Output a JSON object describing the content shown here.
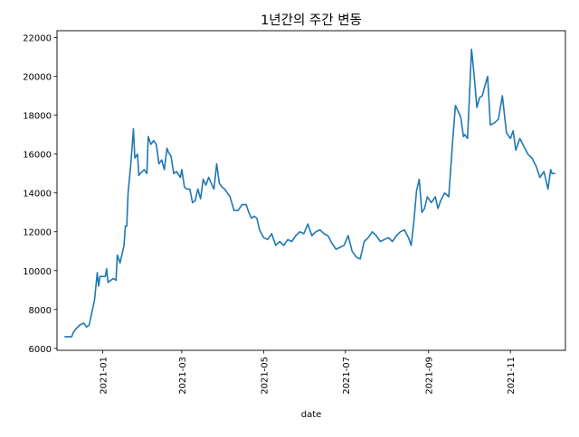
{
  "chart_data": {
    "type": "line",
    "title": "1년간의 주간 변동",
    "xlabel": "date",
    "ylabel": "",
    "xlim": [
      "2020-11-28",
      "2021-12-12"
    ],
    "ylim": [
      5900,
      22350
    ],
    "grid": false,
    "legend": "none",
    "x_ticks": [
      "2021-01",
      "2021-03",
      "2021-05",
      "2021-07",
      "2021-09",
      "2021-11"
    ],
    "y_ticks": [
      6000,
      8000,
      10000,
      12000,
      14000,
      16000,
      18000,
      20000,
      22000
    ],
    "series": [
      {
        "color": "#1f77b4",
        "x": [
          "2020-12-04",
          "2020-12-09",
          "2020-12-10",
          "2020-12-12",
          "2020-12-15",
          "2020-12-18",
          "2020-12-20",
          "2020-12-22",
          "2020-12-26",
          "2020-12-28",
          "2020-12-29",
          "2020-12-30",
          "2021-01-01",
          "2021-01-03",
          "2021-01-04",
          "2021-01-05",
          "2021-01-09",
          "2021-01-11",
          "2021-01-12",
          "2021-01-14",
          "2021-01-17",
          "2021-01-18",
          "2021-01-19",
          "2021-01-20",
          "2021-01-22",
          "2021-01-24",
          "2021-01-25",
          "2021-01-27",
          "2021-01-28",
          "2021-01-29",
          "2021-02-01",
          "2021-02-03",
          "2021-02-04",
          "2021-02-06",
          "2021-02-08",
          "2021-02-10",
          "2021-02-12",
          "2021-02-14",
          "2021-02-16",
          "2021-02-18",
          "2021-02-19",
          "2021-02-21",
          "2021-02-23",
          "2021-02-25",
          "2021-02-28",
          "2021-03-01",
          "2021-03-03",
          "2021-03-05",
          "2021-03-07",
          "2021-03-09",
          "2021-03-11",
          "2021-03-13",
          "2021-03-15",
          "2021-03-17",
          "2021-03-19",
          "2021-03-21",
          "2021-03-23",
          "2021-03-25",
          "2021-03-27",
          "2021-03-29",
          "2021-03-31",
          "2021-04-02",
          "2021-04-04",
          "2021-04-06",
          "2021-04-09",
          "2021-04-12",
          "2021-04-15",
          "2021-04-18",
          "2021-04-20",
          "2021-04-22",
          "2021-04-24",
          "2021-04-26",
          "2021-04-28",
          "2021-05-01",
          "2021-05-04",
          "2021-05-07",
          "2021-05-10",
          "2021-05-13",
          "2021-05-16",
          "2021-05-19",
          "2021-05-22",
          "2021-05-25",
          "2021-05-28",
          "2021-05-31",
          "2021-06-03",
          "2021-06-06",
          "2021-06-09",
          "2021-06-12",
          "2021-06-15",
          "2021-06-18",
          "2021-06-21",
          "2021-06-24",
          "2021-06-27",
          "2021-06-30",
          "2021-07-03",
          "2021-07-06",
          "2021-07-09",
          "2021-07-12",
          "2021-07-15",
          "2021-07-18",
          "2021-07-21",
          "2021-07-24",
          "2021-07-27",
          "2021-07-30",
          "2021-08-02",
          "2021-08-05",
          "2021-08-08",
          "2021-08-11",
          "2021-08-14",
          "2021-08-17",
          "2021-08-19",
          "2021-08-21",
          "2021-08-23",
          "2021-08-25",
          "2021-08-27",
          "2021-08-29",
          "2021-08-31",
          "2021-09-03",
          "2021-09-06",
          "2021-09-08",
          "2021-09-10",
          "2021-09-13",
          "2021-09-16",
          "2021-09-19",
          "2021-09-21",
          "2021-09-23",
          "2021-09-25",
          "2021-09-27",
          "2021-09-28",
          "2021-09-30",
          "2021-10-03",
          "2021-10-05",
          "2021-10-07",
          "2021-10-09",
          "2021-10-11",
          "2021-10-13",
          "2021-10-15",
          "2021-10-17",
          "2021-10-20",
          "2021-10-23",
          "2021-10-26",
          "2021-10-29",
          "2021-11-01",
          "2021-11-03",
          "2021-11-05",
          "2021-11-08",
          "2021-11-11",
          "2021-11-14",
          "2021-11-17",
          "2021-11-20",
          "2021-11-23",
          "2021-11-26",
          "2021-11-29",
          "2021-12-01",
          "2021-12-02",
          "2021-12-04"
        ],
        "y": [
          6600,
          6600,
          6800,
          7000,
          7200,
          7300,
          7100,
          7200,
          8500,
          9900,
          9200,
          9700,
          9700,
          9700,
          10100,
          9400,
          9600,
          9500,
          10800,
          10400,
          11300,
          12300,
          12300,
          14000,
          15500,
          17300,
          15800,
          16000,
          14900,
          15000,
          15200,
          15000,
          16900,
          16500,
          16700,
          16500,
          15500,
          15700,
          15200,
          16300,
          16100,
          15900,
          15000,
          15100,
          14800,
          15200,
          14300,
          14200,
          14200,
          13500,
          13600,
          14200,
          13700,
          14700,
          14400,
          14800,
          14500,
          14200,
          15500,
          14500,
          14300,
          14200,
          14000,
          13800,
          13100,
          13100,
          13400,
          13400,
          13000,
          12700,
          12800,
          12700,
          12100,
          11700,
          11600,
          11900,
          11300,
          11500,
          11300,
          11600,
          11500,
          11800,
          12000,
          11900,
          12400,
          11800,
          12000,
          12100,
          11900,
          11800,
          11400,
          11100,
          11200,
          11300,
          11800,
          11000,
          10700,
          10600,
          11500,
          11700,
          12000,
          11800,
          11500,
          11600,
          11700,
          11500,
          11800,
          12000,
          12100,
          11700,
          11300,
          12500,
          14100,
          14700,
          13000,
          13200,
          13800,
          13500,
          13800,
          13200,
          13600,
          14000,
          13800,
          16700,
          18500,
          18200,
          17900,
          16900,
          17000,
          16800,
          21400,
          20000,
          18400,
          18900,
          19000,
          19500,
          20000,
          17500,
          17600,
          17800,
          19000,
          17100,
          16800,
          17200,
          16200,
          16800,
          16400,
          16000,
          15800,
          15400,
          14800,
          15100,
          14200,
          15200,
          15000,
          15000
        ]
      }
    ]
  }
}
